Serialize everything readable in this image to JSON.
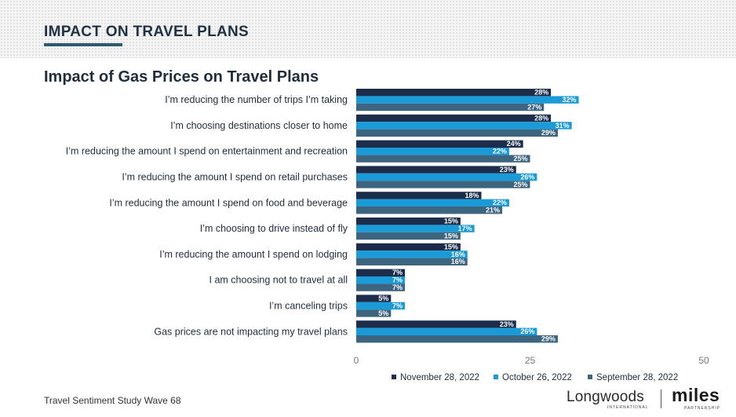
{
  "header": {
    "section_title": "IMPACT ON TRAVEL PLANS"
  },
  "chart_data": {
    "type": "bar",
    "orientation": "horizontal",
    "title": "Impact of Gas Prices on Travel Plans",
    "categories": [
      "I’m reducing the number of trips I’m taking",
      "I’m choosing destinations closer to home",
      "I’m reducing the amount I spend on entertainment and recreation",
      "I’m reducing the amount I spend on retail purchases",
      "I’m reducing the amount I spend on food and beverage",
      "I’m choosing to drive instead of fly",
      "I’m reducing the amount I spend on lodging",
      "I am choosing not to travel at all",
      "I’m canceling trips",
      "Gas prices are not impacting my travel plans"
    ],
    "series": [
      {
        "name": "November 28, 2022",
        "color": "#1b2d4a",
        "values": [
          28,
          28,
          24,
          23,
          18,
          15,
          15,
          7,
          5,
          23
        ],
        "labels": [
          "28%",
          "28%",
          "24%",
          "23%",
          "18%",
          "15%",
          "15%",
          "7%",
          "5%",
          "23%"
        ]
      },
      {
        "name": "October 26, 2022",
        "color": "#1a9ad6",
        "values": [
          32,
          31,
          22,
          26,
          22,
          17,
          16,
          7,
          7,
          26
        ],
        "labels": [
          "32%",
          "31%",
          "22%",
          "26%",
          "22%",
          "17%",
          "16%",
          "7%",
          "7%",
          "26%"
        ]
      },
      {
        "name": "September 28, 2022",
        "color": "#3d6580",
        "values": [
          27,
          29,
          25,
          25,
          21,
          15,
          16,
          7,
          5,
          29
        ],
        "labels": [
          "27%",
          "29%",
          "25%",
          "25%",
          "21%",
          "15%",
          "16%",
          "7%",
          "5%",
          "29%"
        ]
      }
    ],
    "xlim": [
      0,
      50
    ],
    "ticks": [
      {
        "value": 0,
        "label": "0"
      },
      {
        "value": 25,
        "label": "25"
      },
      {
        "value": 50,
        "label": "50"
      }
    ],
    "legend_position": "bottom-right",
    "grid": false
  },
  "footer": {
    "study_label": "Travel Sentiment Study Wave 68",
    "logo_longwoods": "Longwoods",
    "logo_longwoods_sub": "INTERNATIONAL",
    "logo_miles": "miles",
    "logo_miles_sub": "PARTNERSHIP"
  }
}
